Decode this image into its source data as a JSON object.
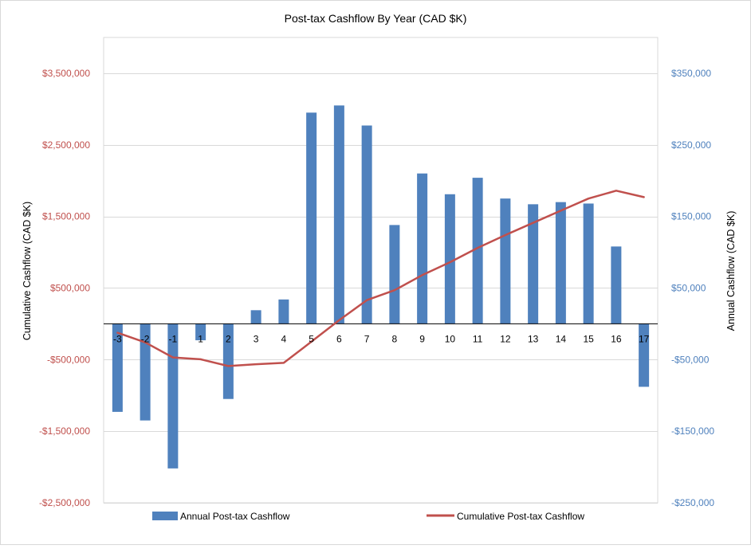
{
  "chart_data": {
    "type": "bar+line",
    "title": "Post-tax Cashflow By Year (CAD $K)",
    "categories": [
      "-3",
      "-2",
      "-1",
      "1",
      "2",
      "3",
      "4",
      "5",
      "6",
      "7",
      "8",
      "9",
      "10",
      "11",
      "12",
      "13",
      "14",
      "15",
      "16",
      "17"
    ],
    "series": [
      {
        "name": "Annual Post-tax Cashflow",
        "type": "bar",
        "axis": "right",
        "color": "#4f81bd",
        "values": [
          -123000,
          -135000,
          -202000,
          -23000,
          -105000,
          19000,
          34000,
          295000,
          305000,
          277000,
          138000,
          210000,
          181000,
          204000,
          175000,
          167000,
          170000,
          168000,
          108000,
          -88000
        ]
      },
      {
        "name": "Cumulative Post-tax Cashflow",
        "type": "line",
        "axis": "left",
        "color": "#c0504d",
        "values": [
          -125000,
          -260000,
          -470000,
          -495000,
          -590000,
          -565000,
          -545000,
          -250000,
          50000,
          330000,
          470000,
          680000,
          860000,
          1060000,
          1240000,
          1410000,
          1580000,
          1750000,
          1860000,
          1770000
        ]
      }
    ],
    "left_axis": {
      "label": "Cumulative Cashflow (CAD $K)",
      "ylim": [
        -2500000,
        4000000
      ],
      "ticks": [
        "$3,500,000",
        "$2,500,000",
        "$1,500,000",
        "$500,000",
        "-$500,000",
        "-$1,500,000",
        "-$2,500,000"
      ],
      "tick_values": [
        3500000,
        2500000,
        1500000,
        500000,
        -500000,
        -1500000,
        -2500000
      ],
      "color": "#c0504d"
    },
    "right_axis": {
      "label": "Annual Cashflow (CAD $K)",
      "ylim": [
        -250000,
        400000
      ],
      "ticks": [
        "$350,000",
        "$250,000",
        "$150,000",
        "$50,000",
        "-$50,000",
        "-$150,000",
        "-$250,000"
      ],
      "tick_values": [
        350000,
        250000,
        150000,
        50000,
        -50000,
        -150000,
        -250000
      ],
      "color": "#4f81bd"
    },
    "grid": true,
    "legend_position": "bottom"
  }
}
